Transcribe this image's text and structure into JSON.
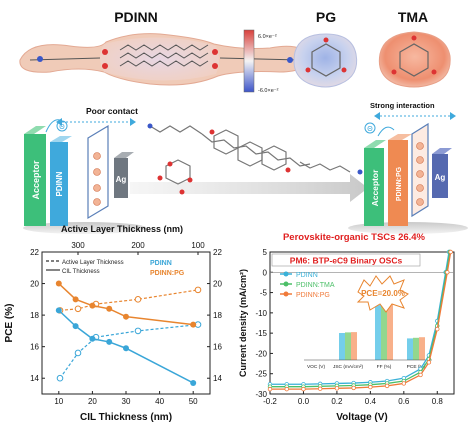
{
  "top": {
    "molecules": [
      {
        "name": "PDINN"
      },
      {
        "name": "PG"
      },
      {
        "name": "TMA"
      }
    ],
    "colorbar": {
      "max": "6.0×e⁻²",
      "min": "-6.0×e⁻²"
    }
  },
  "middle": {
    "left": {
      "title": "Poor contact",
      "acceptor": "Acceptor",
      "interlayer": "PDINN",
      "electrode": "Ag",
      "minus": "Θ"
    },
    "right": {
      "title": "Strong interaction",
      "acceptor": "Acceptor",
      "interlayer": "PDINN:PG",
      "electrode": "Ag",
      "minus": "Θ"
    },
    "colors": {
      "acceptor": "#3dbf7a",
      "pdinn": "#3fa9dc",
      "pdinn_pg": "#ef8a52",
      "ag": "#6f7780",
      "ag_right": "#5569b0"
    }
  },
  "chart_left": {
    "top_axis_label": "Active Layer Thickness (nm)",
    "top_ticks": [
      "300",
      "200",
      "100"
    ],
    "xlabel": "CIL Thickness (nm)",
    "ylabel": "PCE (%)",
    "x_ticks": [
      "10",
      "20",
      "30",
      "40",
      "50"
    ],
    "y_ticks": [
      "14",
      "16",
      "18",
      "20",
      "22"
    ],
    "y_ticks_right": [
      "14",
      "16",
      "18",
      "20",
      "22"
    ],
    "legend_series": [
      "PDINN",
      "PDINN:PG"
    ],
    "legend_styles": [
      "Active Layer Thickness",
      "CIL Thickness"
    ]
  },
  "chart_right": {
    "headline": "Perovskite-organic TSCs 26.4%",
    "subtitle": "PM6: BTP-eC9 Binary OSCs",
    "pce_callout": "PCE=20.0%",
    "xlabel": "Voltage (V)",
    "ylabel": "Current density (mA/cm²)",
    "x_ticks": [
      "-0.2",
      "0.0",
      "0.2",
      "0.4",
      "0.6",
      "0.8"
    ],
    "y_ticks": [
      "5",
      "0",
      "-5",
      "-10",
      "-15",
      "-20",
      "-25",
      "-30"
    ],
    "legend": [
      "PDINN",
      "PDINN:TMA",
      "PDINN:PG"
    ],
    "inset_categories": [
      "VOC (V)",
      "JSC (mA/cm²)",
      "FF (%)",
      "PCE (%)"
    ]
  },
  "chart_data": [
    {
      "type": "line",
      "title": "",
      "xlabel": "CIL Thickness (nm)",
      "ylabel": "PCE (%)",
      "xlim": [
        5,
        55
      ],
      "ylim": [
        13,
        22
      ],
      "series": [
        {
          "name": "PDINN",
          "x": [
            10,
            15,
            20,
            25,
            30,
            50
          ],
          "y": [
            18.3,
            17.3,
            16.5,
            16.3,
            15.9,
            13.7
          ]
        },
        {
          "name": "PDINN:PG",
          "x": [
            10,
            15,
            20,
            25,
            30,
            50
          ],
          "y": [
            20.0,
            19.0,
            18.6,
            18.4,
            17.9,
            17.4
          ]
        }
      ],
      "secondary": {
        "top_axis_label": "Active Layer Thickness (nm)",
        "top_axis_values": [
          300,
          200,
          100
        ],
        "series": [
          {
            "name": "PDINN",
            "top_x": [
              330,
              300,
              270,
              200,
              100
            ],
            "y": [
              14.0,
              15.6,
              16.6,
              17.0,
              17.4
            ]
          },
          {
            "name": "PDINN:PG",
            "top_x": [
              330,
              300,
              270,
              200,
              100
            ],
            "y": [
              18.3,
              18.4,
              18.7,
              19.0,
              19.6
            ]
          }
        ]
      }
    },
    {
      "type": "line",
      "title": "PM6: BTP-eC9 Binary OSCs",
      "xlabel": "Voltage (V)",
      "ylabel": "Current density (mA/cm²)",
      "xlim": [
        -0.2,
        0.9
      ],
      "ylim": [
        -30,
        5
      ],
      "series": [
        {
          "name": "PDINN",
          "x": [
            -0.2,
            -0.1,
            0.0,
            0.1,
            0.2,
            0.3,
            0.4,
            0.5,
            0.6,
            0.7,
            0.75,
            0.8,
            0.85,
            0.87
          ],
          "y": [
            -27.6,
            -27.6,
            -27.6,
            -27.5,
            -27.4,
            -27.3,
            -27.1,
            -26.8,
            -26.1,
            -23.8,
            -20.5,
            -12.0,
            0.0,
            5.0
          ]
        },
        {
          "name": "PDINN:TMA",
          "x": [
            -0.2,
            -0.1,
            0.0,
            0.1,
            0.2,
            0.3,
            0.4,
            0.5,
            0.6,
            0.7,
            0.75,
            0.8,
            0.855,
            0.875
          ],
          "y": [
            -28.2,
            -28.2,
            -28.2,
            -28.1,
            -28.0,
            -27.9,
            -27.7,
            -27.4,
            -26.8,
            -24.6,
            -21.4,
            -13.2,
            0.0,
            5.0
          ]
        },
        {
          "name": "PDINN:PG",
          "x": [
            -0.2,
            -0.1,
            0.0,
            0.1,
            0.2,
            0.3,
            0.4,
            0.5,
            0.6,
            0.7,
            0.75,
            0.8,
            0.86,
            0.88
          ],
          "y": [
            -28.8,
            -28.8,
            -28.8,
            -28.7,
            -28.6,
            -28.5,
            -28.3,
            -28.0,
            -27.4,
            -25.3,
            -22.2,
            -14.0,
            0.0,
            5.0
          ]
        }
      ],
      "inset": {
        "type": "bar",
        "categories": [
          "VOC (V)",
          "JSC (mA/cm²)",
          "FF (%)",
          "PCE (%)"
        ],
        "series": [
          {
            "name": "PDINN",
            "values": [
              0.84,
              0.45,
              0.92,
              0.36
            ]
          },
          {
            "name": "PDINN:TMA",
            "values": [
              0.845,
              0.46,
              0.935,
              0.37
            ]
          },
          {
            "name": "PDINN:PG",
            "values": [
              0.85,
              0.465,
              0.95,
              0.38
            ]
          }
        ]
      }
    }
  ]
}
